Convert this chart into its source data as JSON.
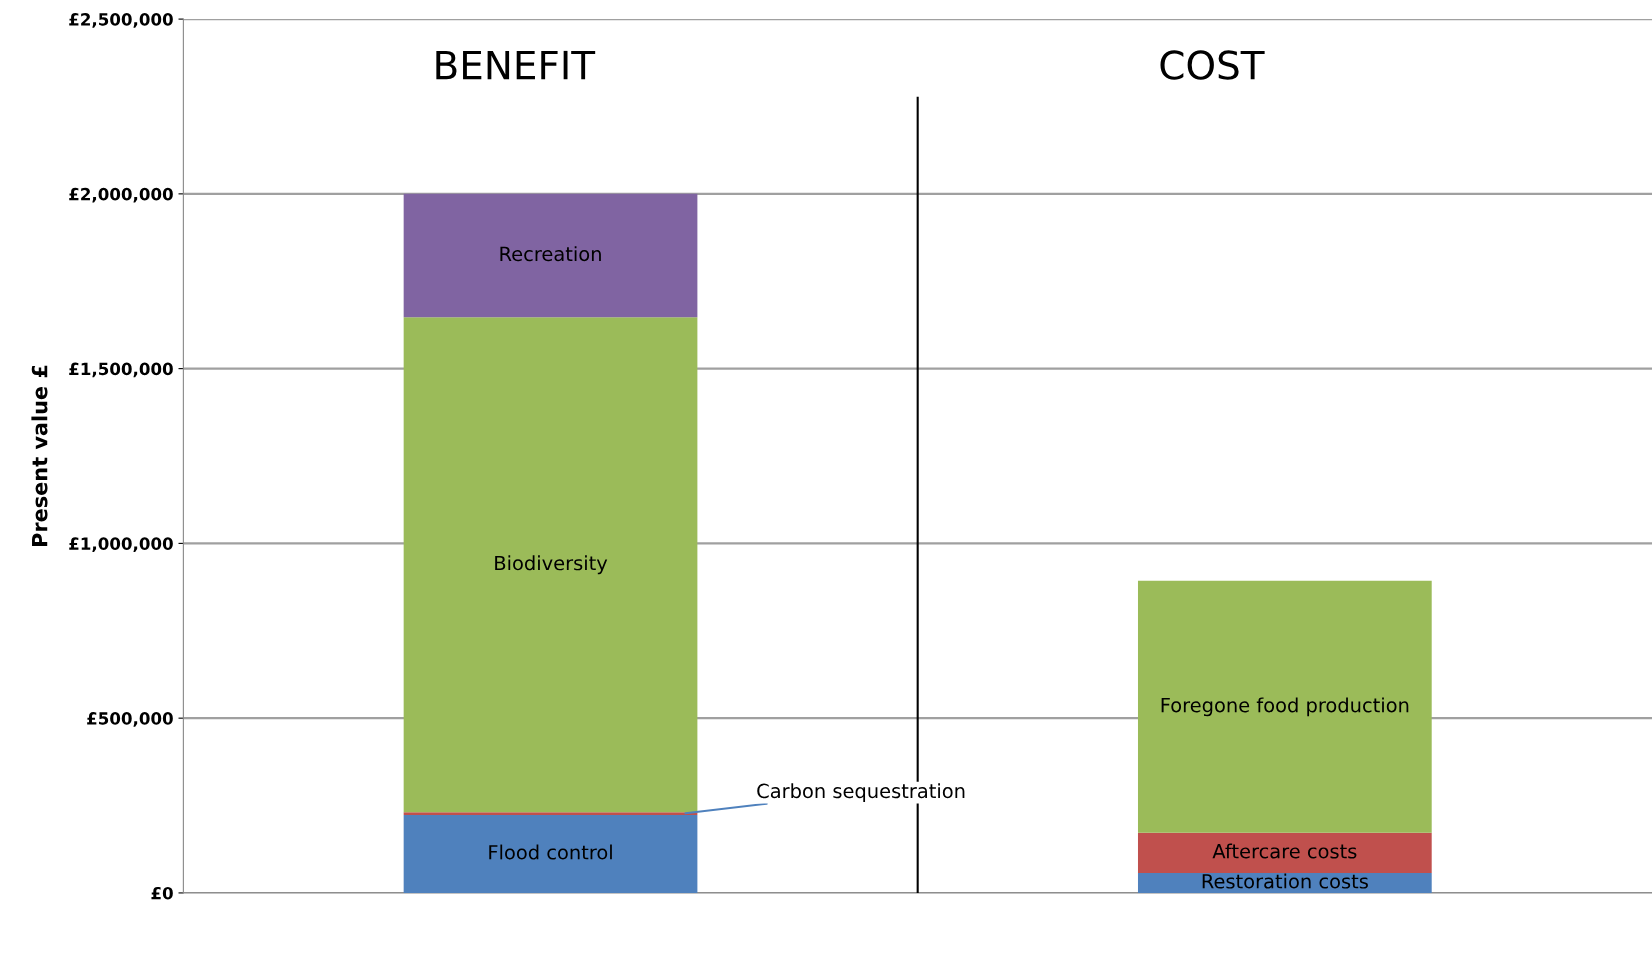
{
  "chart_data": {
    "type": "bar",
    "stacked": true,
    "ylabel": "Present value £",
    "categories": [
      null,
      null
    ],
    "series": [
      {
        "name": "Flood control",
        "color": "#4f81bd",
        "values": [
          223000,
          null
        ]
      },
      {
        "name": "Carbon sequestration",
        "color": "#c0504d",
        "values": [
          8000,
          null
        ]
      },
      {
        "name": "Biodiversity",
        "color": "#9bbb59",
        "values": [
          1416000,
          null
        ]
      },
      {
        "name": "Recreation",
        "color": "#8064a2",
        "values": [
          353000,
          null
        ]
      },
      {
        "name": "Restoration costs",
        "color": "#4f81bd",
        "values": [
          null,
          57000
        ]
      },
      {
        "name": "Aftercare costs",
        "color": "#c0504d",
        "values": [
          null,
          115000
        ]
      },
      {
        "name": "Foregone food production",
        "color": "#9bbb59",
        "values": [
          null,
          721000
        ]
      }
    ],
    "ylim": [
      0,
      2500000
    ],
    "yticks": [
      {
        "value": 0,
        "label": "£0"
      },
      {
        "value": 500000,
        "label": "£500,000"
      },
      {
        "value": 1000000,
        "label": "£1,000,000"
      },
      {
        "value": 1500000,
        "label": "£1,500,000"
      },
      {
        "value": 2000000,
        "label": "£2,000,000"
      },
      {
        "value": 2500000,
        "label": "£2,500,000"
      }
    ],
    "grid": "y",
    "legend": false,
    "annotations": [
      "BENEFIT",
      "COST"
    ]
  }
}
